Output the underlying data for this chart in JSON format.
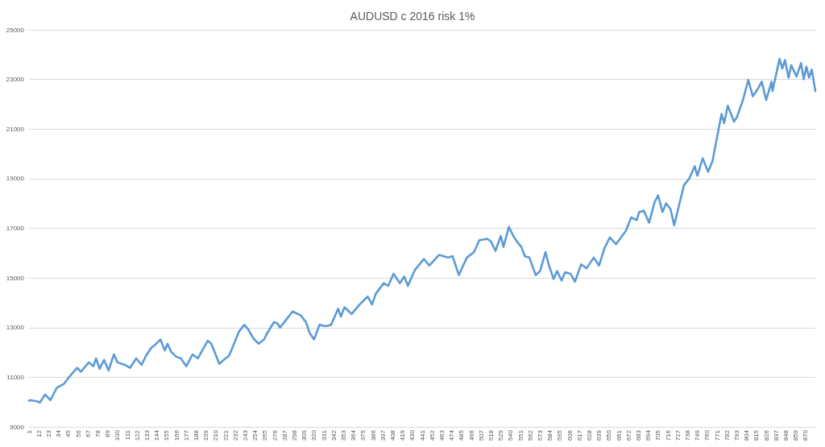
{
  "chart_data": {
    "type": "line",
    "title": "AUDUSD c 2016 risk 1%",
    "x": [
      1,
      2,
      10,
      13,
      19,
      25,
      32,
      40,
      47,
      55,
      59,
      68,
      73,
      76,
      80,
      85,
      90,
      96,
      100,
      108,
      114,
      121,
      127,
      132,
      138,
      142,
      148,
      153,
      156,
      160,
      166,
      171,
      177,
      184,
      190,
      201,
      205,
      208,
      214,
      219,
      225,
      236,
      242,
      246,
      252,
      258,
      264,
      267,
      275,
      279,
      282,
      288,
      296,
      305,
      311,
      315,
      320,
      326,
      333,
      339,
      347,
      350,
      354,
      362,
      371,
      380,
      385,
      389,
      398,
      403,
      409,
      416,
      421,
      425,
      433,
      443,
      449,
      460,
      470,
      475,
      482,
      491,
      499,
      505,
      514,
      518,
      523,
      529,
      532,
      538,
      543,
      547,
      552,
      556,
      561,
      568,
      573,
      579,
      583,
      588,
      592,
      597,
      601,
      607,
      612,
      619,
      625,
      633,
      639,
      645,
      651,
      658,
      669,
      675,
      681,
      684,
      689,
      695,
      701,
      705,
      710,
      714,
      719,
      723,
      734,
      740,
      746,
      749,
      755,
      761,
      766,
      776,
      779,
      783,
      790,
      793,
      800,
      806,
      811,
      817,
      821,
      826,
      832,
      833,
      841,
      844,
      847,
      851,
      854,
      860,
      865,
      868,
      871,
      874,
      877,
      881
    ],
    "series": [
      {
        "color": "#5b9bd5",
        "values": [
          10050,
          10080,
          10030,
          9975,
          10300,
          10080,
          10570,
          10730,
          11060,
          11380,
          11220,
          11600,
          11440,
          11760,
          11340,
          11700,
          11270,
          11920,
          11600,
          11500,
          11380,
          11760,
          11500,
          11870,
          12190,
          12300,
          12520,
          12080,
          12350,
          12030,
          11820,
          11760,
          11440,
          11920,
          11760,
          12470,
          12350,
          12080,
          11540,
          11700,
          11870,
          12840,
          13110,
          12950,
          12570,
          12350,
          12520,
          12740,
          13220,
          13170,
          13000,
          13280,
          13650,
          13490,
          13220,
          12790,
          12520,
          13110,
          13060,
          13110,
          13760,
          13440,
          13820,
          13550,
          13930,
          14250,
          13930,
          14360,
          14790,
          14680,
          15170,
          14790,
          15060,
          14680,
          15330,
          15760,
          15500,
          15930,
          15820,
          15880,
          15120,
          15820,
          16040,
          16520,
          16580,
          16470,
          16090,
          16690,
          16250,
          17060,
          16690,
          16470,
          16250,
          15870,
          15820,
          15120,
          15280,
          16040,
          15500,
          14960,
          15280,
          14900,
          15230,
          15170,
          14850,
          15550,
          15390,
          15820,
          15500,
          16200,
          16630,
          16360,
          16900,
          17440,
          17330,
          17660,
          17710,
          17230,
          18040,
          18330,
          17660,
          18010,
          17770,
          17120,
          18740,
          19010,
          19500,
          19120,
          19820,
          19280,
          19720,
          21610,
          21240,
          21940,
          21300,
          21460,
          22170,
          22980,
          22320,
          22640,
          22910,
          22170,
          22910,
          22530,
          23830,
          23440,
          23780,
          23070,
          23570,
          23120,
          23660,
          23010,
          23510,
          23070,
          23400,
          22530
        ]
      }
    ],
    "xlim": [
      1,
      881
    ],
    "xticks": [
      1,
      12,
      23,
      34,
      45,
      56,
      67,
      78,
      89,
      100,
      111,
      122,
      133,
      144,
      155,
      166,
      177,
      188,
      199,
      210,
      221,
      232,
      243,
      254,
      265,
      276,
      287,
      298,
      309,
      320,
      331,
      342,
      353,
      364,
      375,
      386,
      397,
      408,
      419,
      430,
      441,
      452,
      463,
      474,
      485,
      496,
      507,
      518,
      529,
      540,
      551,
      562,
      573,
      584,
      595,
      606,
      617,
      628,
      639,
      650,
      661,
      672,
      683,
      694,
      705,
      716,
      727,
      738,
      749,
      760,
      771,
      782,
      793,
      804,
      815,
      826,
      837,
      848,
      859,
      870
    ],
    "ylim": [
      9000,
      25000
    ],
    "yticks": [
      9000,
      11000,
      13000,
      15000,
      17000,
      19000,
      21000,
      23000,
      25000
    ],
    "grid": "y",
    "marker": "none"
  }
}
